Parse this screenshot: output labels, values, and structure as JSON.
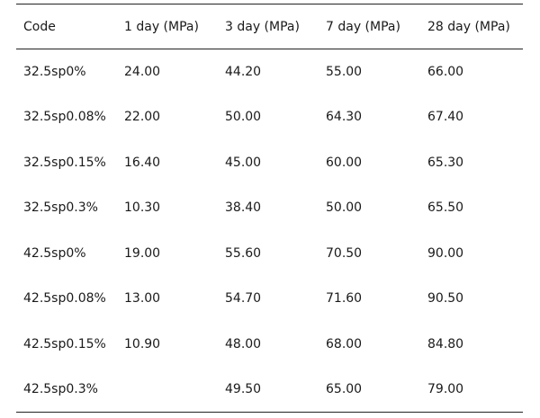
{
  "table": {
    "headers": [
      "Code",
      "1 day (MPa)",
      "3 day (MPa)",
      "7 day (MPa)",
      "28 day (MPa)"
    ],
    "rows": [
      [
        "32.5sp0%",
        "24.00",
        "44.20",
        "55.00",
        "66.00"
      ],
      [
        "32.5sp0.08%",
        "22.00",
        "50.00",
        "64.30",
        "67.40"
      ],
      [
        "32.5sp0.15%",
        "16.40",
        "45.00",
        "60.00",
        "65.30"
      ],
      [
        "32.5sp0.3%",
        "10.30",
        "38.40",
        "50.00",
        "65.50"
      ],
      [
        "42.5sp0%",
        "19.00",
        "55.60",
        "70.50",
        "90.00"
      ],
      [
        "42.5sp0.08%",
        "13.00",
        "54.70",
        "71.60",
        "90.50"
      ],
      [
        "42.5sp0.15%",
        "10.90",
        "48.00",
        "68.00",
        "84.80"
      ],
      [
        "42.5sp0.3%",
        "",
        "49.50",
        "65.00",
        "79.00"
      ]
    ]
  }
}
